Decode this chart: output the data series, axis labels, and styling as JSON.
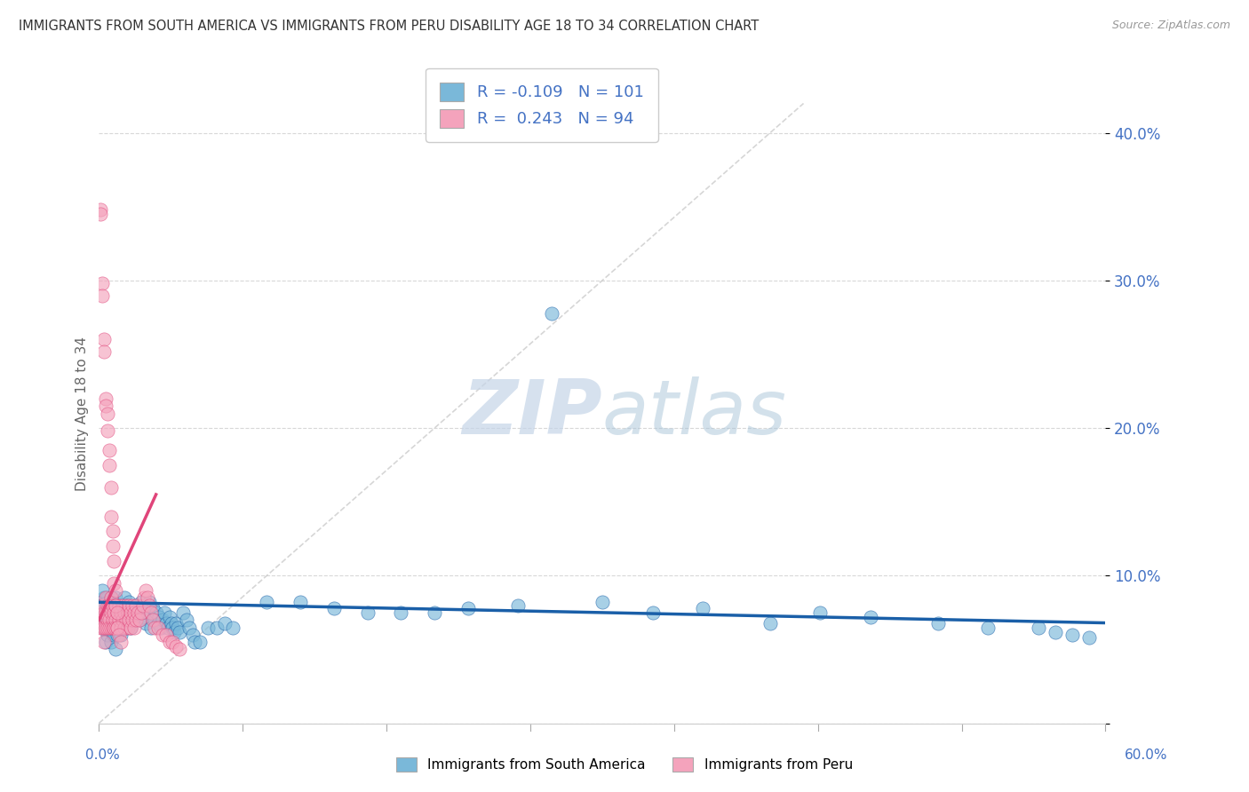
{
  "title": "IMMIGRANTS FROM SOUTH AMERICA VS IMMIGRANTS FROM PERU DISABILITY AGE 18 TO 34 CORRELATION CHART",
  "source": "Source: ZipAtlas.com",
  "ylabel": "Disability Age 18 to 34",
  "xlim": [
    0.0,
    0.6
  ],
  "ylim": [
    0.0,
    0.42
  ],
  "yticks": [
    0.0,
    0.1,
    0.2,
    0.3,
    0.4
  ],
  "ytick_labels": [
    "",
    "10.0%",
    "20.0%",
    "30.0%",
    "40.0%"
  ],
  "r_blue": -0.109,
  "n_blue": 101,
  "r_pink": 0.243,
  "n_pink": 94,
  "blue_color": "#7ab8d9",
  "pink_color": "#f4a3bc",
  "blue_line_color": "#1a5fa8",
  "pink_line_color": "#e0457a",
  "diag_line_color": "#cccccc",
  "watermark_color": "#d0dce8",
  "title_color": "#333333",
  "axis_color": "#4472c4",
  "blue_scatter_x": [
    0.001,
    0.002,
    0.002,
    0.003,
    0.003,
    0.004,
    0.004,
    0.005,
    0.005,
    0.005,
    0.006,
    0.006,
    0.007,
    0.007,
    0.007,
    0.008,
    0.008,
    0.009,
    0.009,
    0.01,
    0.01,
    0.01,
    0.011,
    0.011,
    0.012,
    0.012,
    0.013,
    0.013,
    0.014,
    0.014,
    0.015,
    0.015,
    0.016,
    0.016,
    0.017,
    0.018,
    0.018,
    0.019,
    0.019,
    0.02,
    0.021,
    0.022,
    0.023,
    0.024,
    0.025,
    0.026,
    0.027,
    0.028,
    0.029,
    0.03,
    0.031,
    0.032,
    0.033,
    0.034,
    0.035,
    0.036,
    0.037,
    0.038,
    0.039,
    0.04,
    0.041,
    0.042,
    0.043,
    0.044,
    0.045,
    0.046,
    0.047,
    0.048,
    0.05,
    0.052,
    0.054,
    0.056,
    0.057,
    0.06,
    0.065,
    0.07,
    0.075,
    0.08,
    0.1,
    0.12,
    0.14,
    0.16,
    0.18,
    0.2,
    0.22,
    0.25,
    0.27,
    0.3,
    0.33,
    0.36,
    0.4,
    0.43,
    0.46,
    0.5,
    0.53,
    0.56,
    0.57,
    0.58,
    0.59,
    0.001,
    0.002
  ],
  "blue_scatter_y": [
    0.075,
    0.07,
    0.08,
    0.065,
    0.085,
    0.055,
    0.07,
    0.06,
    0.075,
    0.085,
    0.065,
    0.08,
    0.055,
    0.07,
    0.085,
    0.065,
    0.08,
    0.06,
    0.075,
    0.05,
    0.07,
    0.085,
    0.06,
    0.075,
    0.065,
    0.08,
    0.06,
    0.075,
    0.065,
    0.08,
    0.07,
    0.085,
    0.065,
    0.08,
    0.072,
    0.068,
    0.082,
    0.065,
    0.078,
    0.072,
    0.075,
    0.08,
    0.075,
    0.07,
    0.082,
    0.078,
    0.072,
    0.068,
    0.075,
    0.082,
    0.065,
    0.078,
    0.07,
    0.075,
    0.068,
    0.072,
    0.065,
    0.07,
    0.075,
    0.068,
    0.065,
    0.072,
    0.068,
    0.065,
    0.062,
    0.068,
    0.065,
    0.062,
    0.075,
    0.07,
    0.065,
    0.06,
    0.055,
    0.055,
    0.065,
    0.065,
    0.068,
    0.065,
    0.082,
    0.082,
    0.078,
    0.075,
    0.075,
    0.075,
    0.078,
    0.08,
    0.278,
    0.082,
    0.075,
    0.078,
    0.068,
    0.075,
    0.072,
    0.068,
    0.065,
    0.065,
    0.062,
    0.06,
    0.058,
    0.08,
    0.09
  ],
  "pink_scatter_x": [
    0.001,
    0.001,
    0.002,
    0.002,
    0.002,
    0.003,
    0.003,
    0.003,
    0.004,
    0.004,
    0.004,
    0.005,
    0.005,
    0.005,
    0.006,
    0.006,
    0.006,
    0.007,
    0.007,
    0.007,
    0.008,
    0.008,
    0.008,
    0.009,
    0.009,
    0.01,
    0.01,
    0.01,
    0.011,
    0.011,
    0.012,
    0.012,
    0.013,
    0.013,
    0.014,
    0.014,
    0.015,
    0.015,
    0.016,
    0.016,
    0.017,
    0.017,
    0.018,
    0.018,
    0.019,
    0.019,
    0.02,
    0.02,
    0.021,
    0.021,
    0.022,
    0.022,
    0.023,
    0.024,
    0.025,
    0.026,
    0.027,
    0.028,
    0.029,
    0.03,
    0.031,
    0.032,
    0.033,
    0.035,
    0.038,
    0.04,
    0.042,
    0.044,
    0.046,
    0.048,
    0.001,
    0.001,
    0.002,
    0.002,
    0.003,
    0.003,
    0.004,
    0.004,
    0.005,
    0.005,
    0.006,
    0.006,
    0.007,
    0.007,
    0.008,
    0.008,
    0.009,
    0.009,
    0.01,
    0.01,
    0.011,
    0.011,
    0.012,
    0.013
  ],
  "pink_scatter_y": [
    0.075,
    0.065,
    0.07,
    0.08,
    0.065,
    0.075,
    0.065,
    0.055,
    0.065,
    0.075,
    0.085,
    0.07,
    0.08,
    0.065,
    0.07,
    0.08,
    0.065,
    0.075,
    0.065,
    0.085,
    0.07,
    0.08,
    0.065,
    0.075,
    0.065,
    0.07,
    0.08,
    0.065,
    0.075,
    0.065,
    0.07,
    0.08,
    0.065,
    0.075,
    0.07,
    0.08,
    0.075,
    0.065,
    0.07,
    0.08,
    0.075,
    0.065,
    0.07,
    0.08,
    0.075,
    0.065,
    0.07,
    0.08,
    0.075,
    0.065,
    0.07,
    0.08,
    0.075,
    0.07,
    0.075,
    0.08,
    0.085,
    0.09,
    0.085,
    0.08,
    0.075,
    0.07,
    0.065,
    0.065,
    0.06,
    0.06,
    0.055,
    0.055,
    0.052,
    0.05,
    0.348,
    0.345,
    0.298,
    0.29,
    0.26,
    0.252,
    0.22,
    0.215,
    0.21,
    0.198,
    0.185,
    0.175,
    0.16,
    0.14,
    0.13,
    0.12,
    0.11,
    0.095,
    0.09,
    0.08,
    0.075,
    0.065,
    0.06,
    0.055
  ],
  "blue_regline_x": [
    0.0,
    0.6
  ],
  "blue_regline_y": [
    0.082,
    0.068
  ],
  "pink_regline_x": [
    0.0,
    0.034
  ],
  "pink_regline_y": [
    0.07,
    0.155
  ],
  "diag_line_x": [
    0.0,
    0.42
  ],
  "diag_line_y": [
    0.0,
    0.42
  ]
}
